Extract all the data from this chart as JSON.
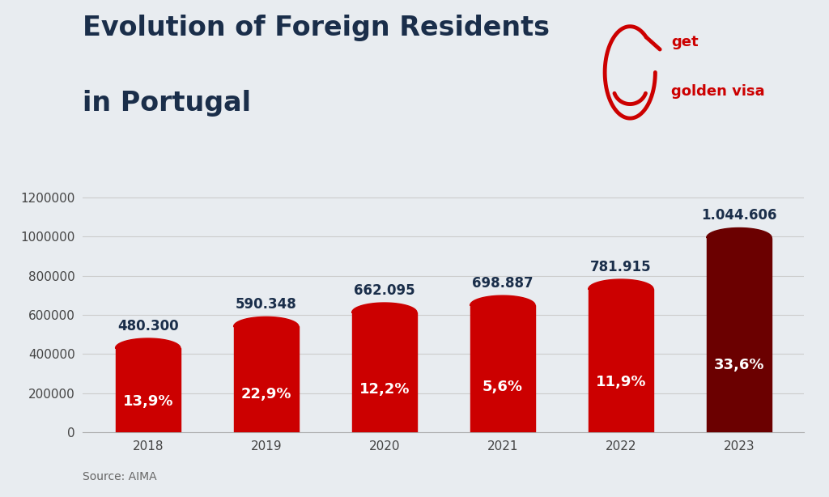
{
  "title_line1": "Evolution of Foreign Residents",
  "title_line2": "in Portugal",
  "source": "Source: AIMA",
  "background_color": "#e8ecf0",
  "years": [
    "2018",
    "2019",
    "2020",
    "2021",
    "2022",
    "2023"
  ],
  "values": [
    480300,
    590348,
    662095,
    698887,
    781915,
    1044606
  ],
  "value_labels": [
    "480.300",
    "590.348",
    "662.095",
    "698.887",
    "781.915",
    "1.044.606"
  ],
  "pct_labels": [
    "13,9%",
    "22,9%",
    "12,2%",
    "5,6%",
    "11,9%",
    "33,6%"
  ],
  "bar_colors": [
    "#cc0000",
    "#cc0000",
    "#cc0000",
    "#cc0000",
    "#cc0000",
    "#6b0000"
  ],
  "bar_width": 0.55,
  "ylim": [
    0,
    1320000
  ],
  "yticks": [
    0,
    200000,
    400000,
    600000,
    800000,
    1000000,
    1200000
  ],
  "title_color": "#1a2e4a",
  "value_label_color": "#1a2e4a",
  "pct_label_color": "#ffffff",
  "axis_color": "#aaaaaa",
  "grid_color": "#cccccc",
  "title_fontsize": 24,
  "value_fontsize": 12,
  "pct_fontsize": 13,
  "tick_fontsize": 11,
  "source_fontsize": 10,
  "logo_text_fontsize": 13
}
